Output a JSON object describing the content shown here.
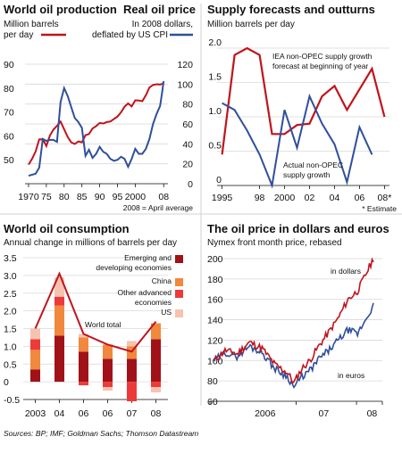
{
  "source": "Sources: BP; IMF; Goldman Sachs; Thomson Datastream",
  "colors": {
    "red": "#c0141c",
    "blue": "#2f4f9c",
    "orange": "#f0883e",
    "salmon": "#ec3a3a",
    "peach": "#f7c3b0"
  },
  "chart_data": [
    {
      "type": "line",
      "title": "World oil production",
      "title2": "Real oil price",
      "left_label": [
        "Million barrels",
        "per day"
      ],
      "right_label": [
        "In 2008 dollars,",
        "deflated by US CPI"
      ],
      "note": "2008 = April average",
      "x_ticks": [
        "1970",
        "75",
        "80",
        "85",
        "90",
        "95",
        "2000",
        "08"
      ],
      "x_tick_years": [
        1970,
        1975,
        1980,
        1985,
        1990,
        1995,
        2000,
        2008
      ],
      "ylim_left": [
        40,
        90
      ],
      "yticks_left": [
        "90",
        "80",
        "70",
        "60",
        "50"
      ],
      "ylim_right": [
        0,
        120
      ],
      "yticks_right": [
        "120",
        "100",
        "80",
        "60",
        "40",
        "20",
        "0"
      ],
      "series": [
        {
          "name": "Million barrels per day",
          "axis": "left",
          "color": "#c0141c",
          "x": [
            1970,
            1971,
            1972,
            1973,
            1974,
            1975,
            1976,
            1977,
            1978,
            1979,
            1980,
            1981,
            1982,
            1983,
            1984,
            1985,
            1986,
            1987,
            1988,
            1989,
            1990,
            1991,
            1992,
            1993,
            1994,
            1995,
            1996,
            1997,
            1998,
            1999,
            2000,
            2001,
            2002,
            2003,
            2004,
            2005,
            2006,
            2007,
            2008
          ],
          "values": [
            48.0,
            50.5,
            53.5,
            58.5,
            58.6,
            55.8,
            60.2,
            62.6,
            64.2,
            66.0,
            62.8,
            59.5,
            57.3,
            56.6,
            57.7,
            57.3,
            60.3,
            60.8,
            63.1,
            64.1,
            65.4,
            65.2,
            65.8,
            66.0,
            67.1,
            68.1,
            69.9,
            72.2,
            73.6,
            72.3,
            74.9,
            74.8,
            74.5,
            77.0,
            80.3,
            81.3,
            81.6,
            81.5,
            82.0
          ]
        },
        {
          "name": "In 2008 dollars, deflated by US CPI",
          "axis": "right",
          "color": "#2f4f9c",
          "x": [
            1970,
            1971,
            1972,
            1973,
            1974,
            1975,
            1976,
            1977,
            1978,
            1979,
            1980,
            1981,
            1982,
            1983,
            1984,
            1985,
            1986,
            1987,
            1988,
            1989,
            1990,
            1991,
            1992,
            1993,
            1994,
            1995,
            1996,
            1997,
            1998,
            1999,
            2000,
            2001,
            2002,
            2003,
            2004,
            2005,
            2006,
            2007,
            2007.5,
            2008
          ],
          "values": [
            8,
            9,
            10,
            16,
            45,
            43,
            44,
            44,
            42,
            82,
            96,
            88,
            77,
            66,
            62,
            56,
            28,
            34,
            26,
            30,
            37,
            32,
            30,
            25,
            23,
            24,
            27,
            25,
            17,
            25,
            35,
            30,
            30,
            35,
            45,
            60,
            70,
            78,
            90,
            103
          ]
        }
      ]
    },
    {
      "type": "line",
      "title": "Supply forecasts and outturns",
      "subtitle": "Million barrels per day",
      "x_ticks": [
        "1995",
        "98",
        "2000",
        "02",
        "04",
        "06",
        "08*"
      ],
      "x_tick_years": [
        1995,
        1998,
        2000,
        2002,
        2004,
        2006,
        2008
      ],
      "ylim": [
        0,
        2.0
      ],
      "yticks": [
        "2.0",
        "1.5",
        "1.0",
        "0.5",
        "0"
      ],
      "footnote": "* Estimate",
      "series": [
        {
          "name": "IEA non-OPEC supply growth forecast at beginning of year",
          "color": "#c0141c",
          "label_lines": [
            "IEA non-OPEC supply growth",
            "forecast at beginning of year"
          ],
          "x": [
            1995,
            1996,
            1997,
            1998,
            1999,
            2000,
            2001,
            2002,
            2003,
            2004,
            2005,
            2006,
            2007,
            2008
          ],
          "values": [
            0.45,
            1.9,
            2.0,
            1.9,
            0.75,
            0.75,
            0.88,
            0.9,
            1.3,
            1.45,
            1.1,
            1.4,
            1.7,
            1.0
          ]
        },
        {
          "name": "Actual non-OPEC supply growth",
          "color": "#2f4f9c",
          "label_lines": [
            "Actual non-OPEC",
            "supply growth"
          ],
          "x": [
            1995,
            1996,
            1997,
            1998,
            1999,
            2000,
            2001,
            2002,
            2003,
            2004,
            2005,
            2006,
            2007
          ],
          "values": [
            1.2,
            1.1,
            0.8,
            0.45,
            0.0,
            1.1,
            0.55,
            1.3,
            0.9,
            0.6,
            0.05,
            0.85,
            0.45
          ]
        }
      ]
    },
    {
      "type": "bar",
      "title": "World oil consumption",
      "subtitle": "Annual change in millions of barrels per day",
      "categories": [
        "2003",
        "04",
        "06",
        "06",
        "07",
        "08"
      ],
      "ylim": [
        -0.5,
        3.5
      ],
      "yticks": [
        "3.5",
        "3.0",
        "2.5",
        "2.0",
        "1.5",
        "1.0",
        "0.5",
        "0",
        "-0.5"
      ],
      "series": [
        {
          "name": "Emerging and developing economies",
          "label_lines": [
            "Emerging and",
            "developing economies"
          ],
          "color": "#a01218",
          "values": [
            0.35,
            1.3,
            0.85,
            0.65,
            0.65,
            1.2
          ]
        },
        {
          "name": "China",
          "label_lines": [
            "China"
          ],
          "color": "#f0883e",
          "values": [
            0.55,
            0.85,
            0.4,
            0.4,
            0.35,
            0.45
          ]
        },
        {
          "name": "Other advanced economies",
          "label_lines": [
            "Other advanced",
            "economies"
          ],
          "color": "#ec3a3a",
          "values": [
            0.3,
            0.25,
            -0.1,
            -0.15,
            -0.55,
            -0.15
          ]
        },
        {
          "name": "US",
          "label_lines": [
            "US"
          ],
          "color": "#f7c3b0",
          "values": [
            0.3,
            0.55,
            0.1,
            -0.1,
            0.15,
            -0.15
          ]
        }
      ],
      "total": {
        "name": "World total",
        "values": [
          1.5,
          3.05,
          1.35,
          1.05,
          0.85,
          1.7
        ]
      }
    },
    {
      "type": "line",
      "title": "The oil price in dollars and euros",
      "subtitle": "Nymex front month price, rebased",
      "x_ticks": [
        "2006",
        "07",
        "08"
      ],
      "ylim": [
        60,
        200
      ],
      "yticks": [
        "200",
        "180",
        "160",
        "140",
        "120",
        "100",
        "80",
        "60"
      ],
      "series": [
        {
          "name": "in dollars",
          "color": "#c0141c",
          "seed": 11,
          "ctrl_t": [
            0.0,
            0.07,
            0.14,
            0.22,
            0.3,
            0.38,
            0.46,
            0.5,
            0.55,
            0.6,
            0.66,
            0.72,
            0.78,
            0.84,
            0.9,
            0.95,
            1.0
          ],
          "ctrl_v": [
            100,
            110,
            106,
            118,
            112,
            96,
            88,
            78,
            92,
            100,
            115,
            128,
            142,
            160,
            168,
            184,
            200
          ]
        },
        {
          "name": "in euros",
          "color": "#2f4f9c",
          "seed": 29,
          "ctrl_t": [
            0.0,
            0.07,
            0.14,
            0.22,
            0.3,
            0.38,
            0.46,
            0.5,
            0.55,
            0.6,
            0.66,
            0.72,
            0.78,
            0.84,
            0.9,
            0.95,
            1.0
          ],
          "ctrl_v": [
            100,
            108,
            104,
            114,
            108,
            92,
            84,
            74,
            84,
            90,
            102,
            110,
            120,
            130,
            126,
            140,
            154
          ]
        }
      ]
    }
  ]
}
